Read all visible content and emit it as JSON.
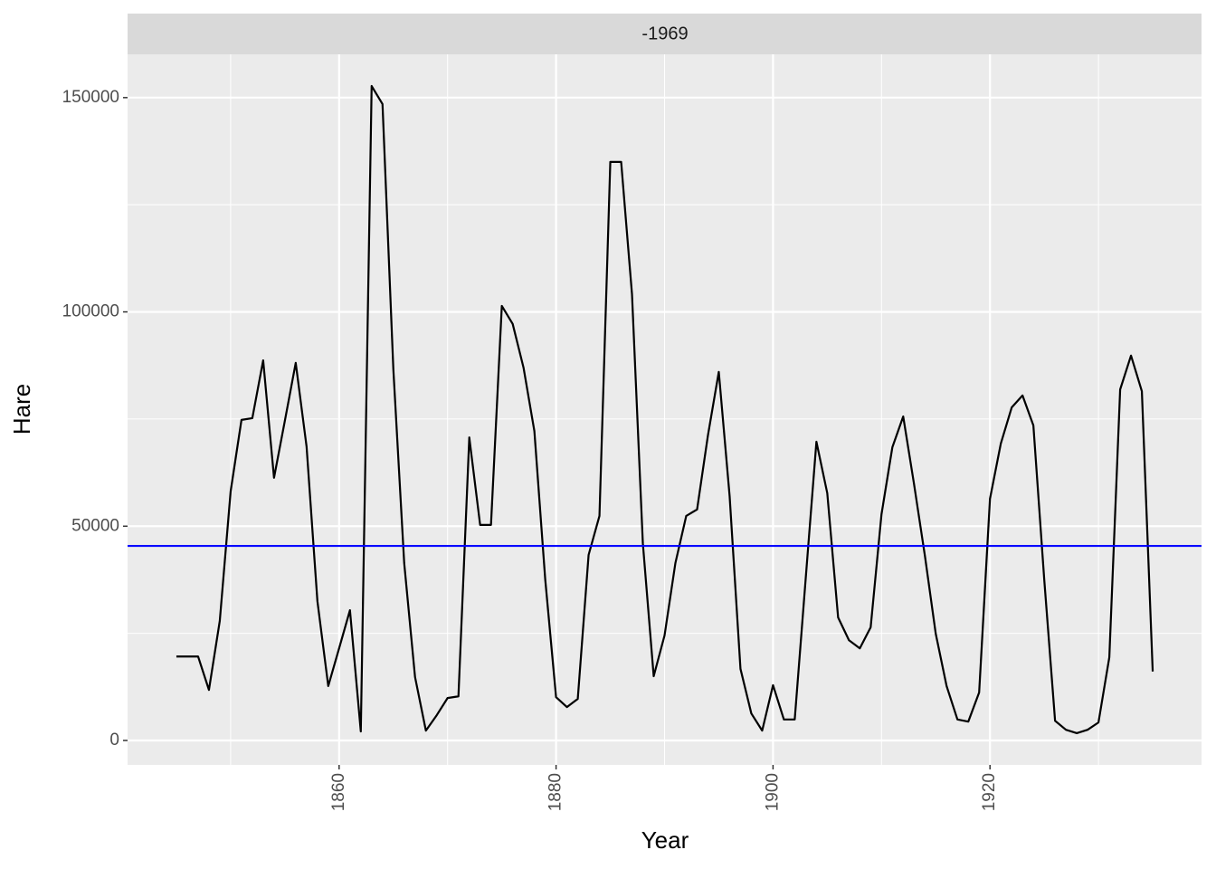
{
  "chart_data": {
    "type": "line",
    "facet_label": "-1969",
    "x_label": "Year",
    "y_label": "Hare",
    "x": [
      1845,
      1846,
      1847,
      1848,
      1849,
      1850,
      1851,
      1852,
      1853,
      1854,
      1855,
      1856,
      1857,
      1858,
      1859,
      1860,
      1861,
      1862,
      1863,
      1864,
      1865,
      1866,
      1867,
      1868,
      1869,
      1870,
      1871,
      1872,
      1873,
      1874,
      1875,
      1876,
      1877,
      1878,
      1879,
      1880,
      1881,
      1882,
      1883,
      1884,
      1885,
      1886,
      1887,
      1888,
      1889,
      1890,
      1891,
      1892,
      1893,
      1894,
      1895,
      1896,
      1897,
      1898,
      1899,
      1900,
      1901,
      1902,
      1903,
      1904,
      1905,
      1906,
      1907,
      1908,
      1909,
      1910,
      1911,
      1912,
      1913,
      1914,
      1915,
      1916,
      1917,
      1918,
      1919,
      1920,
      1921,
      1922,
      1923,
      1924,
      1925,
      1926,
      1927,
      1928,
      1929,
      1930,
      1931,
      1932,
      1933,
      1934,
      1935
    ],
    "series": [
      {
        "name": "Hare",
        "color": "#000000",
        "values": [
          19600,
          19600,
          19600,
          11800,
          27900,
          58100,
          74800,
          75200,
          88700,
          61300,
          74600,
          88100,
          68600,
          32500,
          12700,
          21500,
          30400,
          2100,
          152700,
          148500,
          86600,
          41400,
          14800,
          2300,
          5900,
          9900,
          10300,
          70700,
          50300,
          50300,
          101400,
          97200,
          87000,
          72200,
          37600,
          10100,
          7800,
          9700,
          43300,
          52400,
          135000,
          135000,
          104100,
          46000,
          15000,
          24500,
          41400,
          52400,
          53900,
          71200,
          86000,
          57000,
          16700,
          6300,
          2300,
          12900,
          4900,
          4900,
          37400,
          69700,
          57700,
          28700,
          23400,
          21500,
          26400,
          52800,
          68400,
          75600,
          59800,
          43100,
          24900,
          12700,
          4900,
          4400,
          11200,
          56400,
          69300,
          77700,
          80500,
          73500,
          37600,
          4600,
          2500,
          1700,
          2500,
          4200,
          19400,
          81900,
          89800,
          81500,
          16100
        ]
      }
    ],
    "hline": {
      "value": 45400,
      "color": "#0000ff"
    },
    "xlim": [
      1840.5,
      1939.5
    ],
    "xticks": [
      1860,
      1880,
      1900,
      1920
    ],
    "xminor": [
      1850,
      1870,
      1890,
      1910,
      1930
    ],
    "ylim": [
      -5700,
      160100
    ],
    "yticks": [
      0,
      50000,
      100000,
      150000
    ],
    "yminor": [
      25000,
      75000,
      125000
    ],
    "grid": true
  }
}
